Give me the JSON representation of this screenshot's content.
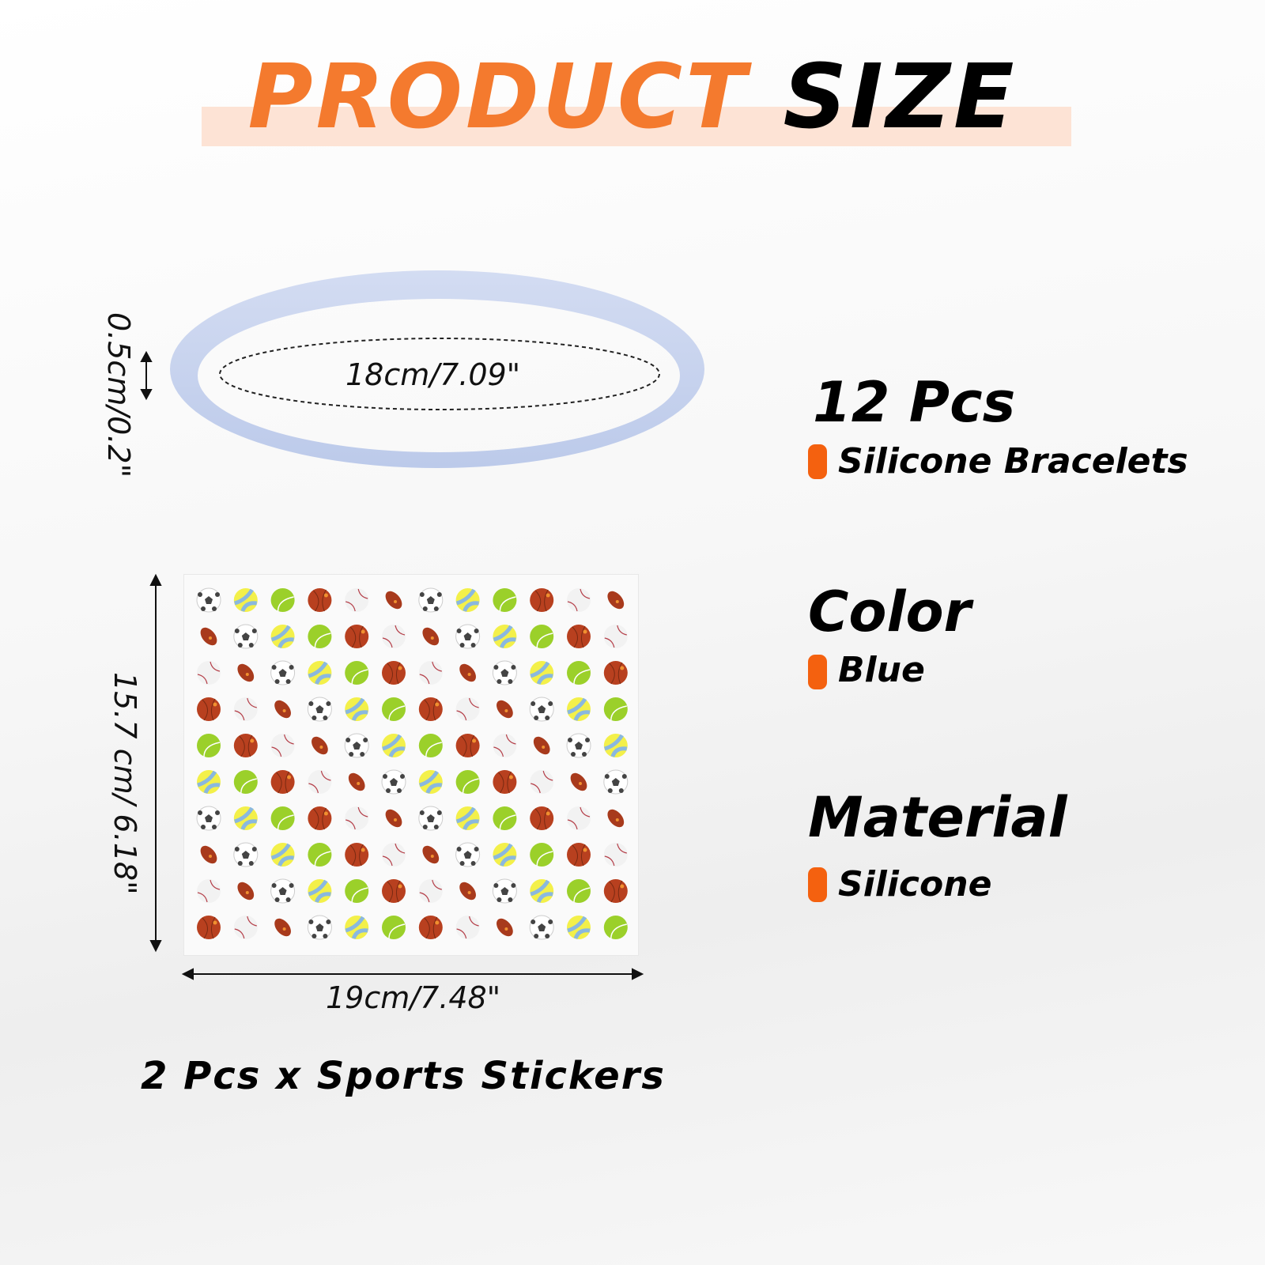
{
  "title": {
    "word1": "PRODUCT",
    "word2": "SIZE",
    "accent": "#f47a2e",
    "band": "#fde3d5"
  },
  "bracelet": {
    "color": "#c5d1ee",
    "circumference_label": "18cm/7.09\"",
    "width_label": "0.5cm/0.2\""
  },
  "stickers": {
    "height_label": "15.7 cm/ 6.18\"",
    "width_label": "19cm/7.48\"",
    "caption": "2 Pcs x Sports Stickers",
    "rows": 10,
    "cols": 12,
    "ball_sequence": [
      "soccer",
      "volleyball",
      "tennis",
      "basketball",
      "baseball",
      "football"
    ]
  },
  "specs": [
    {
      "heading": "12 Pcs",
      "value": "Silicone Bracelets"
    },
    {
      "heading": "Color",
      "value": "Blue"
    },
    {
      "heading": "Material",
      "value": "Silicone"
    }
  ],
  "bullet_color": "#f4610f"
}
